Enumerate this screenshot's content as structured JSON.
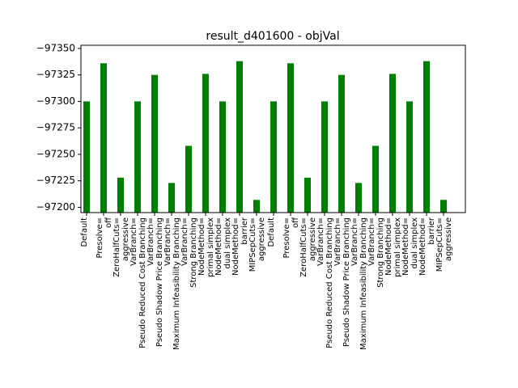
{
  "chart_data": {
    "type": "bar",
    "title": "result_d401600 - objVal",
    "categories": [
      "Default",
      "Presolve=\noff",
      "ZeroHalfCuts=\naggressive",
      "VarBranch=\nPseudo Reduced Cost Branching",
      "VarBranch=\nPseudo Shadow Price Branching",
      "VarBranch=\nMaximum Infeasibility Branching",
      "VarBranch=\nStrong Branching",
      "NodeMethod=\nprimal simplex",
      "NodeMethod=\ndual simplex",
      "NodeMethod=\nbarrier",
      "MIPSepCuts=\naggressive",
      "Default",
      "Presolve=\noff",
      "ZeroHalfCuts=\naggressive",
      "VarBranch=\nPseudo Reduced Cost Branching",
      "VarBranch=\nPseudo Shadow Price Branching",
      "VarBranch=\nMaximum Infeasibility Branching",
      "VarBranch=\nStrong Branching",
      "NodeMethod=\nprimal simplex",
      "NodeMethod=\ndual simplex",
      "NodeMethod=\nbarrier",
      "MIPSepCuts=\naggressive"
    ],
    "values": [
      -97300,
      -97336,
      -97228,
      -97300,
      -97325,
      -97223,
      -97258,
      -97326,
      -97300,
      -97338,
      -97207,
      -97300,
      -97336,
      -97228,
      -97300,
      -97325,
      -97223,
      -97258,
      -97326,
      -97300,
      -97338,
      -97207
    ],
    "color": "#008000",
    "ylim": [
      -97195,
      -97353
    ],
    "yticks": [
      {
        "value": -97350,
        "label": "−97350"
      },
      {
        "value": -97325,
        "label": "−97325"
      },
      {
        "value": -97300,
        "label": "−97300"
      },
      {
        "value": -97275,
        "label": "−97275"
      },
      {
        "value": -97250,
        "label": "−97250"
      },
      {
        "value": -97225,
        "label": "−97225"
      },
      {
        "value": -97200,
        "label": "−97200"
      }
    ]
  }
}
